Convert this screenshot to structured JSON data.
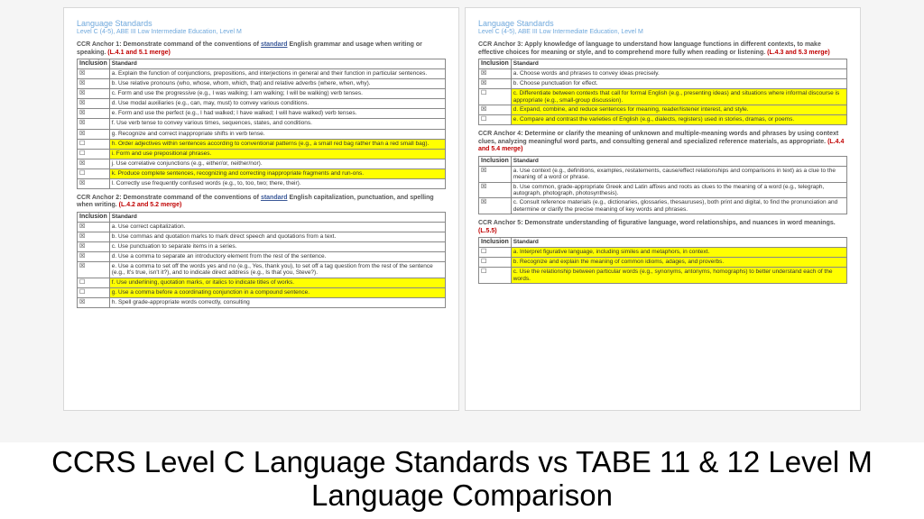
{
  "colors": {
    "header": "#6fa8dc",
    "merge": "#c00000",
    "highlight": "#ffff00",
    "border": "#888888",
    "pageBg": "#ffffff",
    "bodyBg": "#f5f5f5"
  },
  "header": {
    "title": "Language Standards",
    "sub": "Level C (4-5), ABE III Low Intermediate Education, Level M"
  },
  "columns": {
    "inclusion": "Inclusion",
    "standard": "Standard"
  },
  "marks": {
    "checked": "☒",
    "unchecked": "☐"
  },
  "left": {
    "anchors": [
      {
        "title_pre": "CCR Anchor 1: Demonstrate command of the conventions of ",
        "title_ul": "standard",
        "title_post": " English grammar and usage when writing or speaking. ",
        "merge": "(L.4.1 and 5.1 merge)",
        "rows": [
          {
            "inc": "☒",
            "text": "a. Explain the function of conjunctions, prepositions, and interjections in general and their function in particular sentences.",
            "hl": false
          },
          {
            "inc": "☒",
            "text": "b. Use relative pronouns (who, whose, whom, which, that) and relative adverbs (where, when, why).",
            "hl": false
          },
          {
            "inc": "☒",
            "text": "c. Form and use the progressive (e.g., I was walking; I am walking; I will be walking) verb tenses.",
            "hl": false
          },
          {
            "inc": "☒",
            "text": "d. Use modal auxiliaries (e.g., can, may, must) to convey various conditions.",
            "hl": false
          },
          {
            "inc": "☒",
            "text": "e. Form and use the perfect (e.g., I had walked; I have walked; I will have walked) verb tenses.",
            "hl": false
          },
          {
            "inc": "☒",
            "text": "f. Use verb tense to convey various times, sequences, states, and conditions.",
            "hl": false
          },
          {
            "inc": "☒",
            "text": "g. Recognize and correct inappropriate shifts in verb tense.",
            "hl": false
          },
          {
            "inc": "☐",
            "text": "h. Order adjectives within sentences according to conventional patterns (e.g., a small red bag rather than a red small bag).",
            "hl": true
          },
          {
            "inc": "☐",
            "text": "i. Form and use prepositional phrases.",
            "hl": true
          },
          {
            "inc": "☒",
            "text": "j. Use correlative conjunctions (e.g., either/or, neither/nor).",
            "hl": false
          },
          {
            "inc": "☐",
            "text": "k. Produce complete sentences, recognizing and correcting inappropriate fragments and run-ons.",
            "hl": true
          },
          {
            "inc": "☒",
            "text": "l. Correctly use frequently confused words (e.g., to, too, two; there, their).",
            "hl": false
          }
        ]
      },
      {
        "title_pre": "CCR Anchor 2: Demonstrate command of the conventions of ",
        "title_ul": "standard",
        "title_post": " English capitalization, punctuation, and spelling when writing. ",
        "merge": "(L.4.2 and 5.2 merge)",
        "rows": [
          {
            "inc": "☒",
            "text": "a. Use correct capitalization.",
            "hl": false
          },
          {
            "inc": "☒",
            "text": "b. Use commas and quotation marks to mark direct speech and quotations from a text.",
            "hl": false
          },
          {
            "inc": "☒",
            "text": "c. Use punctuation to separate items in a series.",
            "hl": false
          },
          {
            "inc": "☒",
            "text": "d. Use a comma to separate an introductory element from the rest of the sentence.",
            "hl": false
          },
          {
            "inc": "☒",
            "text": "e. Use a comma to set off the words yes and no (e.g., Yes, thank you), to set off a tag question from the rest of the sentence (e.g., It's true, isn't it?), and to indicate direct address (e.g., Is that you, Steve?).",
            "hl": false
          },
          {
            "inc": "☐",
            "text": "f. Use underlining, quotation marks, or italics to indicate titles of works.",
            "hl": true
          },
          {
            "inc": "☐",
            "text": "g. Use a comma before a coordinating conjunction in a compound sentence.",
            "hl": true
          },
          {
            "inc": "☒",
            "text": "h. Spell grade-appropriate words correctly, consulting",
            "hl": false
          }
        ]
      }
    ]
  },
  "right": {
    "anchors": [
      {
        "title_pre": "CCR Anchor 3: Apply knowledge of language to understand how language functions in different contexts, to make effective choices for meaning or style, and to comprehend more fully when reading or listening. ",
        "title_ul": "",
        "title_post": "",
        "merge": "(L.4.3 and 5.3 merge)",
        "rows": [
          {
            "inc": "☒",
            "text": "a. Choose words and phrases to convey ideas precisely.",
            "hl": false
          },
          {
            "inc": "☒",
            "text": "b. Choose punctuation for effect.",
            "hl": false
          },
          {
            "inc": "☐",
            "text": "c. Differentiate between contexts that call for formal English (e.g., presenting ideas) and situations where informal discourse is appropriate (e.g., small-group discussion).",
            "hl": true
          },
          {
            "inc": "☒",
            "text": "d. Expand, combine, and reduce sentences for meaning, reader/listener interest, and style.",
            "hl": true
          },
          {
            "inc": "☐",
            "text": "e. Compare and contrast the varieties of English (e.g., dialects, registers) used in stories, dramas, or poems.",
            "hl": true
          }
        ]
      },
      {
        "title_pre": "CCR Anchor 4: Determine or clarify the meaning of unknown and multiple-meaning words and phrases by using context clues, analyzing meaningful word parts, and consulting general and specialized reference materials, as appropriate. ",
        "title_ul": "",
        "title_post": "",
        "merge": "(L.4.4 and 5.4 merge)",
        "rows": [
          {
            "inc": "☒",
            "text": "a. Use context (e.g., definitions, examples, restatements, cause/effect relationships and comparisons in text) as a clue to the meaning of a word or phrase.",
            "hl": false
          },
          {
            "inc": "☒",
            "text": "b. Use common, grade-appropriate Greek and Latin affixes and roots as clues to the meaning of a word (e.g., telegraph, autograph, photograph, photosynthesis).",
            "hl": false
          },
          {
            "inc": "☒",
            "text": "c. Consult reference materials (e.g., dictionaries, glossaries, thesauruses), both print and digital, to find the pronunciation and determine or clarify the precise meaning of key words and phrases.",
            "hl": false
          }
        ]
      },
      {
        "title_pre": "CCR Anchor 5: Demonstrate understanding of figurative language, word relationships, and nuances in word meanings. ",
        "title_ul": "",
        "title_post": "",
        "merge": "(L.5.5)",
        "rows": [
          {
            "inc": "☐",
            "text": "a. Interpret figurative language, including similes and metaphors, in context.",
            "hl": true
          },
          {
            "inc": "☐",
            "text": "b. Recognize and explain the meaning of common idioms, adages, and proverbs.",
            "hl": true
          },
          {
            "inc": "☐",
            "text": "c. Use the relationship between particular words (e.g., synonyms, antonyms, homographs) to better understand each of the words.",
            "hl": true
          }
        ]
      }
    ]
  },
  "caption": "CCRS Level C Language Standards vs TABE 11 & 12 Level M Language Comparison"
}
